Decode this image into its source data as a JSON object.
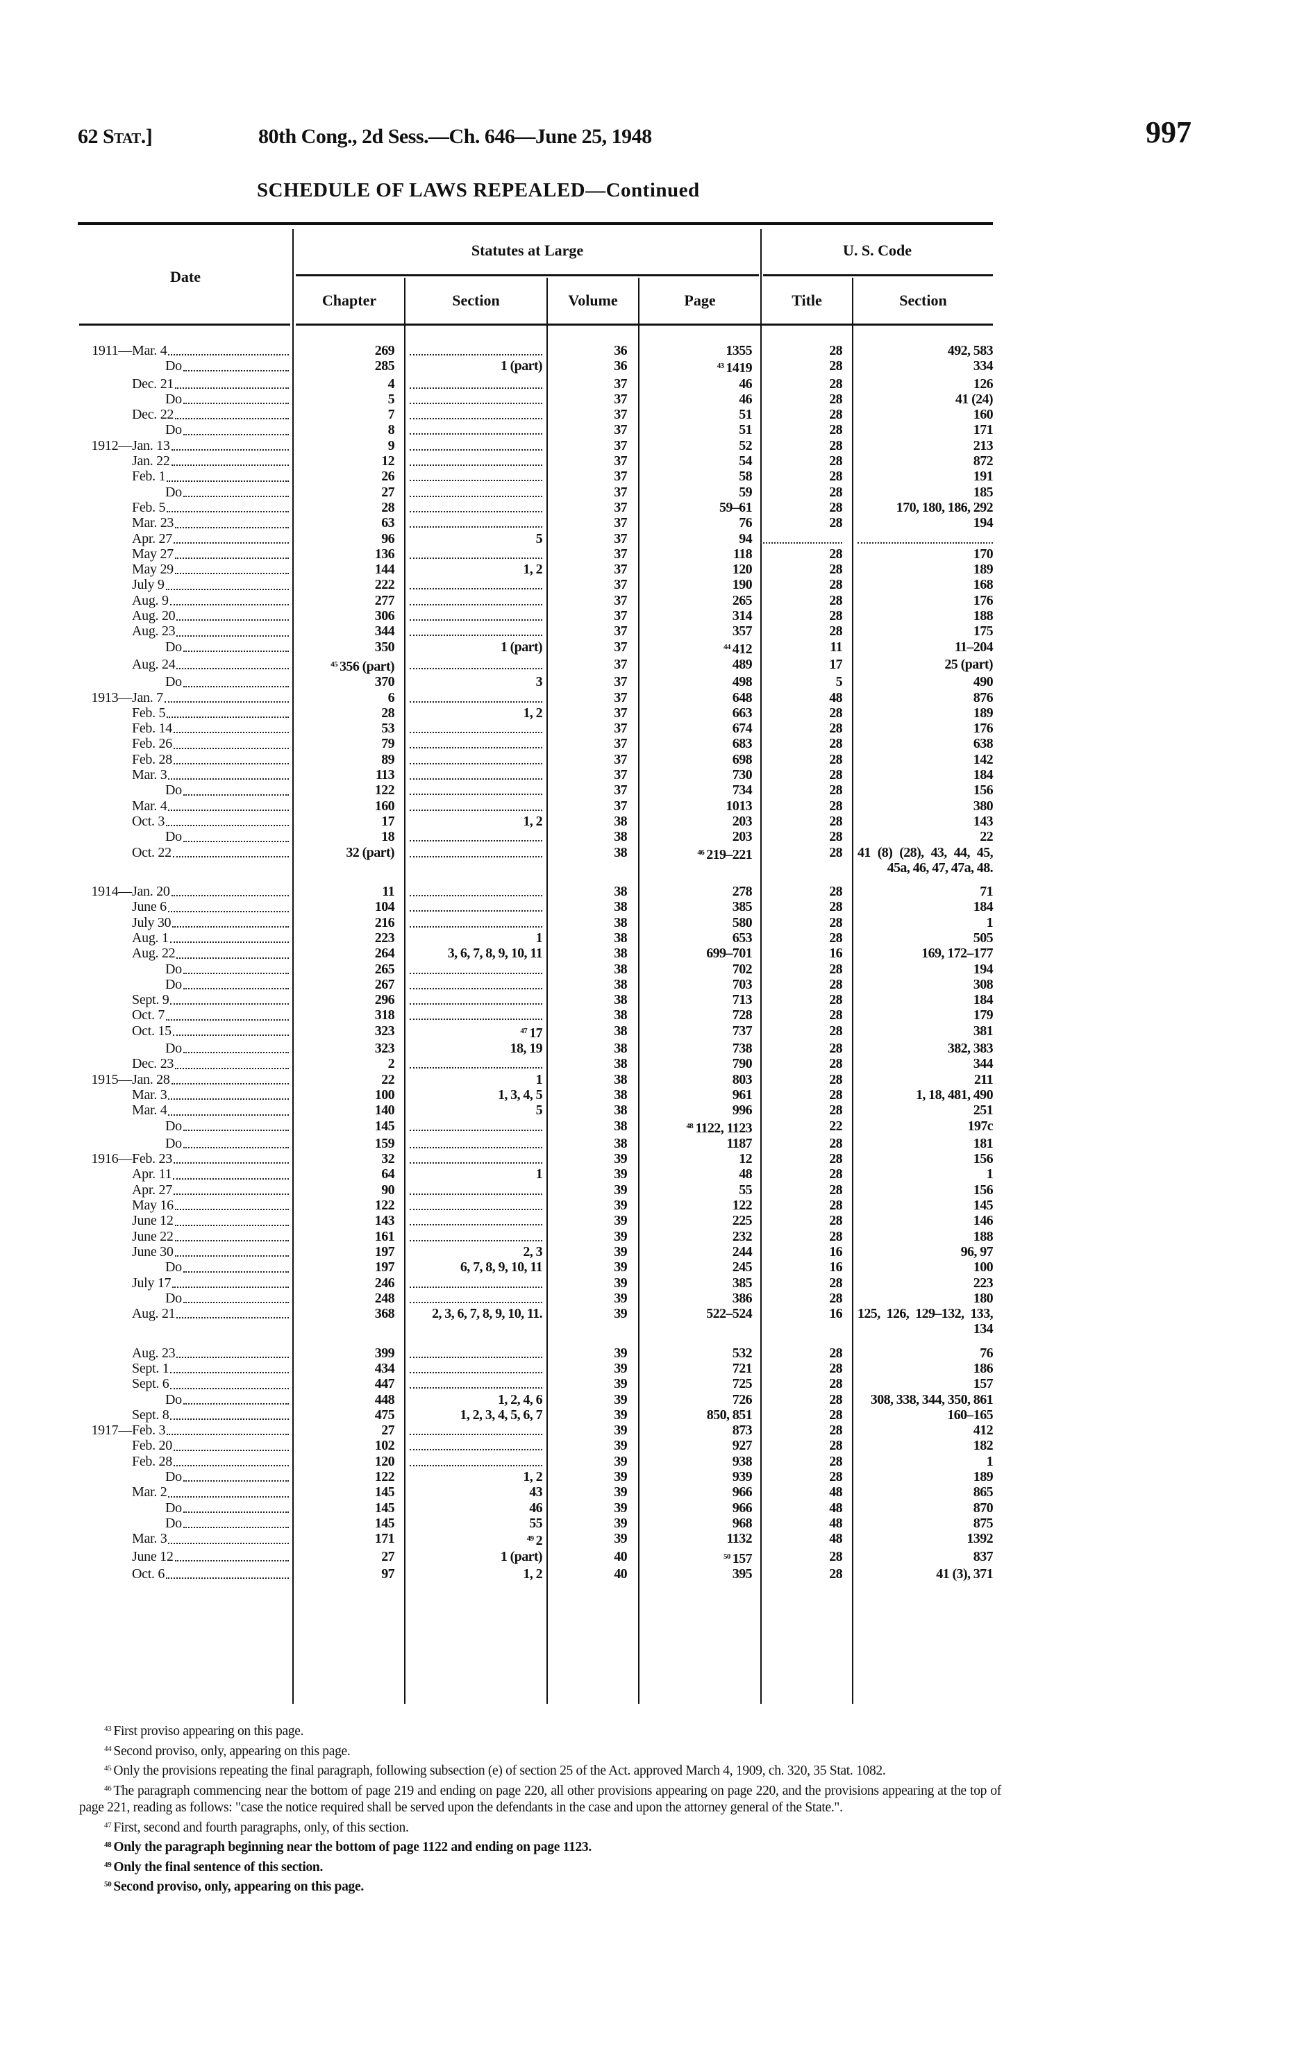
{
  "running_head": {
    "left": "62 Stat.]",
    "center": "80th Cong., 2d Sess.—Ch. 646—June 25, 1948",
    "page_number": "997"
  },
  "title": "SCHEDULE OF LAWS REPEALED—Continued",
  "table": {
    "headers": {
      "date": "Date",
      "statutes_group": "Statutes at Large",
      "code_group": "U. S. Code",
      "chapter": "Chapter",
      "section": "Section",
      "volume": "Volume",
      "page": "Page",
      "title": "Title",
      "code_section": "Section"
    },
    "rows": [
      {
        "year": "1911",
        "date": "Mar. 4",
        "chapter": "269",
        "section": "",
        "volume": "36",
        "page": "1355",
        "title": "28",
        "code_section": "492, 583"
      },
      {
        "date": "Do",
        "chapter": "285",
        "section": "1 (part)",
        "volume": "36",
        "page_fn": "43",
        "page": "1419",
        "title": "28",
        "code_section": "334"
      },
      {
        "date": "Dec. 21",
        "chapter": "4",
        "section": "",
        "volume": "37",
        "page": "46",
        "title": "28",
        "code_section": "126"
      },
      {
        "date": "Do",
        "chapter": "5",
        "section": "",
        "volume": "37",
        "page": "46",
        "title": "28",
        "code_section": "41 (24)"
      },
      {
        "date": "Dec. 22",
        "chapter": "7",
        "section": "",
        "volume": "37",
        "page": "51",
        "title": "28",
        "code_section": "160"
      },
      {
        "date": "Do",
        "chapter": "8",
        "section": "",
        "volume": "37",
        "page": "51",
        "title": "28",
        "code_section": "171"
      },
      {
        "year": "1912",
        "date": "Jan. 13",
        "chapter": "9",
        "section": "",
        "volume": "37",
        "page": "52",
        "title": "28",
        "code_section": "213"
      },
      {
        "date": "Jan. 22",
        "chapter": "12",
        "section": "",
        "volume": "37",
        "page": "54",
        "title": "28",
        "code_section": "872"
      },
      {
        "date": "Feb. 1",
        "chapter": "26",
        "section": "",
        "volume": "37",
        "page": "58",
        "title": "28",
        "code_section": "191"
      },
      {
        "date": "Do",
        "chapter": "27",
        "section": "",
        "volume": "37",
        "page": "59",
        "title": "28",
        "code_section": "185"
      },
      {
        "date": "Feb. 5",
        "chapter": "28",
        "section": "",
        "volume": "37",
        "page": "59–61",
        "title": "28",
        "code_section": "170, 180, 186, 292"
      },
      {
        "date": "Mar. 23",
        "chapter": "63",
        "section": "",
        "volume": "37",
        "page": "76",
        "title": "28",
        "code_section": "194"
      },
      {
        "date": "Apr. 27",
        "chapter": "96",
        "section": "5",
        "volume": "37",
        "page": "94",
        "title": "",
        "code_section": ""
      },
      {
        "date": "May 27",
        "chapter": "136",
        "section": "",
        "volume": "37",
        "page": "118",
        "title": "28",
        "code_section": "170"
      },
      {
        "date": "May 29",
        "chapter": "144",
        "section": "1, 2",
        "volume": "37",
        "page": "120",
        "title": "28",
        "code_section": "189"
      },
      {
        "date": "July 9",
        "chapter": "222",
        "section": "",
        "volume": "37",
        "page": "190",
        "title": "28",
        "code_section": "168"
      },
      {
        "date": "Aug. 9",
        "chapter": "277",
        "section": "",
        "volume": "37",
        "page": "265",
        "title": "28",
        "code_section": "176"
      },
      {
        "date": "Aug. 20",
        "chapter": "306",
        "section": "",
        "volume": "37",
        "page": "314",
        "title": "28",
        "code_section": "188"
      },
      {
        "date": "Aug. 23",
        "chapter": "344",
        "section": "",
        "volume": "37",
        "page": "357",
        "title": "28",
        "code_section": "175"
      },
      {
        "date": "Do",
        "chapter": "350",
        "section": "1 (part)",
        "volume": "37",
        "page_fn": "44",
        "page": "412",
        "title": "11",
        "code_section": "11–204"
      },
      {
        "date": "Aug. 24",
        "chapter_fn": "45",
        "chapter": "356 (part)",
        "section": "",
        "volume": "37",
        "page": "489",
        "title": "17",
        "code_section": "25 (part)"
      },
      {
        "date": "Do",
        "chapter": "370",
        "section": "3",
        "volume": "37",
        "page": "498",
        "title": "5",
        "code_section": "490"
      },
      {
        "year": "1913",
        "date": "Jan. 7",
        "chapter": "6",
        "section": "",
        "volume": "37",
        "page": "648",
        "title": "48",
        "code_section": "876"
      },
      {
        "date": "Feb. 5",
        "chapter": "28",
        "section": "1, 2",
        "volume": "37",
        "page": "663",
        "title": "28",
        "code_section": "189"
      },
      {
        "date": "Feb. 14",
        "chapter": "53",
        "section": "",
        "volume": "37",
        "page": "674",
        "title": "28",
        "code_section": "176"
      },
      {
        "date": "Feb. 26",
        "chapter": "79",
        "section": "",
        "volume": "37",
        "page": "683",
        "title": "28",
        "code_section": "638"
      },
      {
        "date": "Feb. 28",
        "chapter": "89",
        "section": "",
        "volume": "37",
        "page": "698",
        "title": "28",
        "code_section": "142"
      },
      {
        "date": "Mar. 3",
        "chapter": "113",
        "section": "",
        "volume": "37",
        "page": "730",
        "title": "28",
        "code_section": "184"
      },
      {
        "date": "Do",
        "chapter": "122",
        "section": "",
        "volume": "37",
        "page": "734",
        "title": "28",
        "code_section": "156"
      },
      {
        "date": "Mar. 4",
        "chapter": "160",
        "section": "",
        "volume": "37",
        "page": "1013",
        "title": "28",
        "code_section": "380"
      },
      {
        "date": "Oct. 3",
        "chapter": "17",
        "section": "1, 2",
        "volume": "38",
        "page": "203",
        "title": "28",
        "code_section": "143"
      },
      {
        "date": "Do",
        "chapter": "18",
        "section": "",
        "volume": "38",
        "page": "203",
        "title": "28",
        "code_section": "22"
      },
      {
        "date": "Oct. 22",
        "chapter": "32 (part)",
        "section": "",
        "volume": "38",
        "page_fn": "46",
        "page": "219–221",
        "title": "28",
        "code_section": "41 (8) (28), 43, 44, 45, 45a, 46, 47, 47a, 48."
      },
      {
        "year": "1914",
        "date": "Jan. 20",
        "chapter": "11",
        "section": "",
        "volume": "38",
        "page": "278",
        "title": "28",
        "code_section": "71"
      },
      {
        "date": "June 6",
        "chapter": "104",
        "section": "",
        "volume": "38",
        "page": "385",
        "title": "28",
        "code_section": "184"
      },
      {
        "date": "July 30",
        "chapter": "216",
        "section": "",
        "volume": "38",
        "page": "580",
        "title": "28",
        "code_section": "1"
      },
      {
        "date": "Aug. 1",
        "chapter": "223",
        "section": "1",
        "volume": "38",
        "page": "653",
        "title": "28",
        "code_section": "505"
      },
      {
        "date": "Aug. 22",
        "chapter": "264",
        "section": "3, 6, 7, 8, 9, 10, 11",
        "volume": "38",
        "page": "699–701",
        "title": "16",
        "code_section": "169, 172–177"
      },
      {
        "date": "Do",
        "chapter": "265",
        "section": "",
        "volume": "38",
        "page": "702",
        "title": "28",
        "code_section": "194"
      },
      {
        "date": "Do",
        "chapter": "267",
        "section": "",
        "volume": "38",
        "page": "703",
        "title": "28",
        "code_section": "308"
      },
      {
        "date": "Sept. 9",
        "chapter": "296",
        "section": "",
        "volume": "38",
        "page": "713",
        "title": "28",
        "code_section": "184"
      },
      {
        "date": "Oct. 7",
        "chapter": "318",
        "section": "",
        "volume": "38",
        "page": "728",
        "title": "28",
        "code_section": "179"
      },
      {
        "date": "Oct. 15",
        "chapter": "323",
        "section_fn": "47",
        "section": "17",
        "volume": "38",
        "page": "737",
        "title": "28",
        "code_section": "381"
      },
      {
        "date": "Do",
        "chapter": "323",
        "section": "18, 19",
        "volume": "38",
        "page": "738",
        "title": "28",
        "code_section": "382, 383"
      },
      {
        "date": "Dec. 23",
        "chapter": "2",
        "section": "",
        "volume": "38",
        "page": "790",
        "title": "28",
        "code_section": "344"
      },
      {
        "year": "1915",
        "date": "Jan. 28",
        "chapter": "22",
        "section": "1",
        "volume": "38",
        "page": "803",
        "title": "28",
        "code_section": "211"
      },
      {
        "date": "Mar. 3",
        "chapter": "100",
        "section": "1, 3, 4, 5",
        "volume": "38",
        "page": "961",
        "title": "28",
        "code_section": "1, 18, 481, 490"
      },
      {
        "date": "Mar. 4",
        "chapter": "140",
        "section": "5",
        "volume": "38",
        "page": "996",
        "title": "28",
        "code_section": "251"
      },
      {
        "date": "Do",
        "chapter": "145",
        "section": "",
        "volume": "38",
        "page_fn": "48",
        "page": "1122, 1123",
        "title": "22",
        "code_section": "197c"
      },
      {
        "date": "Do",
        "chapter": "159",
        "section": "",
        "volume": "38",
        "page": "1187",
        "title": "28",
        "code_section": "181"
      },
      {
        "year": "1916",
        "date": "Feb. 23",
        "chapter": "32",
        "section": "",
        "volume": "39",
        "page": "12",
        "title": "28",
        "code_section": "156"
      },
      {
        "date": "Apr. 11",
        "chapter": "64",
        "section": "1",
        "volume": "39",
        "page": "48",
        "title": "28",
        "code_section": "1"
      },
      {
        "date": "Apr. 27",
        "chapter": "90",
        "section": "",
        "volume": "39",
        "page": "55",
        "title": "28",
        "code_section": "156"
      },
      {
        "date": "May 16",
        "chapter": "122",
        "section": "",
        "volume": "39",
        "page": "122",
        "title": "28",
        "code_section": "145"
      },
      {
        "date": "June 12",
        "chapter": "143",
        "section": "",
        "volume": "39",
        "page": "225",
        "title": "28",
        "code_section": "146"
      },
      {
        "date": "June 22",
        "chapter": "161",
        "section": "",
        "volume": "39",
        "page": "232",
        "title": "28",
        "code_section": "188"
      },
      {
        "date": "June 30",
        "chapter": "197",
        "section": "2, 3",
        "volume": "39",
        "page": "244",
        "title": "16",
        "code_section": "96, 97"
      },
      {
        "date": "Do",
        "chapter": "197",
        "section": "6, 7, 8, 9, 10, 11",
        "volume": "39",
        "page": "245",
        "title": "16",
        "code_section": "100"
      },
      {
        "date": "July 17",
        "chapter": "246",
        "section": "",
        "volume": "39",
        "page": "385",
        "title": "28",
        "code_section": "223"
      },
      {
        "date": "Do",
        "chapter": "248",
        "section": "",
        "volume": "39",
        "page": "386",
        "title": "28",
        "code_section": "180"
      },
      {
        "date": "Aug. 21",
        "chapter": "368",
        "section": "2, 3, 6, 7, 8, 9, 10, 11.",
        "volume": "39",
        "page": "522–524",
        "title": "16",
        "code_section": "125, 126, 129–132, 133, 134"
      },
      {
        "date": "Aug. 23",
        "chapter": "399",
        "section": "",
        "volume": "39",
        "page": "532",
        "title": "28",
        "code_section": "76"
      },
      {
        "date": "Sept. 1",
        "chapter": "434",
        "section": "",
        "volume": "39",
        "page": "721",
        "title": "28",
        "code_section": "186"
      },
      {
        "date": "Sept. 6",
        "chapter": "447",
        "section": "",
        "volume": "39",
        "page": "725",
        "title": "28",
        "code_section": "157"
      },
      {
        "date": "Do",
        "chapter": "448",
        "section": "1, 2, 4, 6",
        "volume": "39",
        "page": "726",
        "title": "28",
        "code_section": "308, 338, 344, 350, 861"
      },
      {
        "date": "Sept. 8",
        "chapter": "475",
        "section": "1, 2, 3, 4, 5, 6, 7",
        "volume": "39",
        "page": "850, 851",
        "title": "28",
        "code_section": "160–165"
      },
      {
        "year": "1917",
        "date": "Feb. 3",
        "chapter": "27",
        "section": "",
        "volume": "39",
        "page": "873",
        "title": "28",
        "code_section": "412"
      },
      {
        "date": "Feb. 20",
        "chapter": "102",
        "section": "",
        "volume": "39",
        "page": "927",
        "title": "28",
        "code_section": "182"
      },
      {
        "date": "Feb. 28",
        "chapter": "120",
        "section": "",
        "volume": "39",
        "page": "938",
        "title": "28",
        "code_section": "1"
      },
      {
        "date": "Do",
        "chapter": "122",
        "section": "1, 2",
        "volume": "39",
        "page": "939",
        "title": "28",
        "code_section": "189"
      },
      {
        "date": "Mar. 2",
        "chapter": "145",
        "section": "43",
        "volume": "39",
        "page": "966",
        "title": "48",
        "code_section": "865"
      },
      {
        "date": "Do",
        "chapter": "145",
        "section": "46",
        "volume": "39",
        "page": "966",
        "title": "48",
        "code_section": "870"
      },
      {
        "date": "Do",
        "chapter": "145",
        "section": "55",
        "volume": "39",
        "page": "968",
        "title": "48",
        "code_section": "875"
      },
      {
        "date": "Mar. 3",
        "chapter": "171",
        "section_fn": "49",
        "section": "2",
        "volume": "39",
        "page": "1132",
        "title": "48",
        "code_section": "1392"
      },
      {
        "date": "June 12",
        "chapter": "27",
        "section": "1 (part)",
        "volume": "40",
        "page_fn": "50",
        "page": "157",
        "title": "28",
        "code_section": "837"
      },
      {
        "date": "Oct. 6",
        "chapter": "97",
        "section": "1, 2",
        "volume": "40",
        "page": "395",
        "title": "28",
        "code_section": "41 (3), 371"
      }
    ]
  },
  "footnotes": [
    {
      "mark": "43",
      "text": "First proviso appearing on this page."
    },
    {
      "mark": "44",
      "text": "Second proviso, only, appearing on this page."
    },
    {
      "mark": "45",
      "text": "Only the provisions repeating the final paragraph, following subsection (e) of section 25 of the Act. approved March 4, 1909, ch. 320, 35 Stat. 1082."
    },
    {
      "mark": "46",
      "text": "The paragraph commencing near the bottom of page 219 and ending on page 220, all other provisions appearing on page 220, and the provisions appearing at the top of page 221, reading as follows: \"case the notice required shall be served upon the defendants in the case and upon the attorney general of the State.\"."
    },
    {
      "mark": "47",
      "text": "First, second and fourth paragraphs, only, of this section."
    },
    {
      "mark": "48",
      "text": "Only the paragraph beginning near the bottom of page 1122 and ending on page 1123."
    },
    {
      "mark": "49",
      "text": "Only the final sentence of this section."
    },
    {
      "mark": "50",
      "text": "Second proviso, only, appearing on this page."
    }
  ]
}
